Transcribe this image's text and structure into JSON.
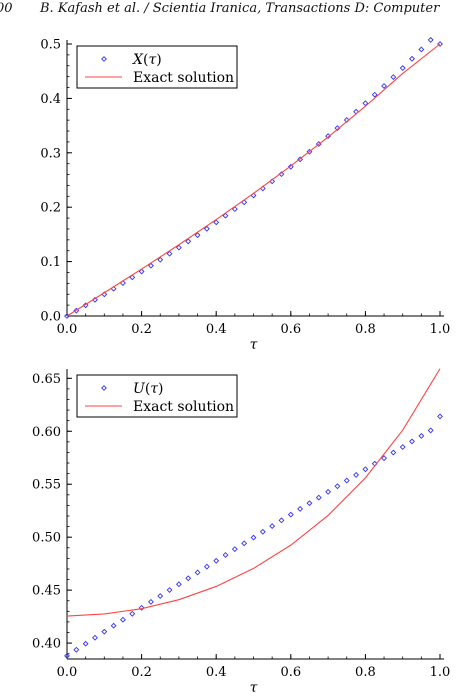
{
  "header": {
    "page_number": "00",
    "running_title": "B. Kafash et al. / Scientia Iranica, Transactions D: Computer"
  },
  "chart_data": [
    {
      "type": "scatter",
      "xlabel": "τ",
      "ylabel": "",
      "xlim": [
        0,
        1
      ],
      "ylim": [
        0,
        0.5
      ],
      "x_ticks": [
        "0.0",
        "0.2",
        "0.4",
        "0.6",
        "0.8",
        "1.0"
      ],
      "y_ticks": [
        "0.0",
        "0.1",
        "0.2",
        "0.3",
        "0.4",
        "0.5"
      ],
      "legend_position": "top-left",
      "grid": false,
      "series": [
        {
          "name": "X(τ)",
          "kind": "markers",
          "marker": "diamond",
          "color": "#3333ff",
          "x": [
            0,
            0.025,
            0.05,
            0.075,
            0.1,
            0.125,
            0.15,
            0.175,
            0.2,
            0.225,
            0.25,
            0.275,
            0.3,
            0.325,
            0.35,
            0.375,
            0.4,
            0.425,
            0.45,
            0.475,
            0.5,
            0.525,
            0.55,
            0.575,
            0.6,
            0.625,
            0.65,
            0.675,
            0.7,
            0.725,
            0.75,
            0.775,
            0.8,
            0.825,
            0.85,
            0.875,
            0.9,
            0.925,
            0.95,
            0.975,
            1.0
          ],
          "y": [
            0.0,
            0.0098,
            0.0197,
            0.0298,
            0.0399,
            0.0502,
            0.0606,
            0.0711,
            0.0817,
            0.0925,
            0.1034,
            0.1145,
            0.1257,
            0.1371,
            0.1486,
            0.1603,
            0.1722,
            0.1843,
            0.1965,
            0.209,
            0.2216,
            0.2345,
            0.2475,
            0.2608,
            0.2743,
            0.288,
            0.302,
            0.3162,
            0.3307,
            0.3454,
            0.3603,
            0.3756,
            0.3911,
            0.4068,
            0.4229,
            0.4392,
            0.4558,
            0.4728,
            0.49,
            0.5075,
            0.5
          ]
        },
        {
          "name": "Exact solution",
          "kind": "line",
          "color": "#ff4444",
          "x": [
            0,
            0.1,
            0.2,
            0.3,
            0.4,
            0.5,
            0.6,
            0.7,
            0.8,
            0.9,
            1.0
          ],
          "y": [
            0.0,
            0.0427,
            0.0863,
            0.131,
            0.1772,
            0.2253,
            0.2758,
            0.329,
            0.3856,
            0.4459,
            0.5
          ]
        }
      ]
    },
    {
      "type": "scatter",
      "xlabel": "τ",
      "ylabel": "",
      "xlim": [
        0,
        1
      ],
      "ylim": [
        0.385,
        0.655
      ],
      "x_ticks": [
        "0.0",
        "0.2",
        "0.4",
        "0.6",
        "0.8",
        "1.0"
      ],
      "y_ticks": [
        "0.40",
        "0.45",
        "0.50",
        "0.55",
        "0.60",
        "0.65"
      ],
      "legend_position": "top-left",
      "grid": false,
      "series": [
        {
          "name": "U(τ)",
          "kind": "markers",
          "marker": "diamond",
          "color": "#3333ff",
          "x": [
            0,
            0.025,
            0.05,
            0.075,
            0.1,
            0.125,
            0.15,
            0.175,
            0.2,
            0.225,
            0.25,
            0.275,
            0.3,
            0.325,
            0.35,
            0.375,
            0.4,
            0.425,
            0.45,
            0.475,
            0.5,
            0.525,
            0.55,
            0.575,
            0.6,
            0.625,
            0.65,
            0.675,
            0.7,
            0.725,
            0.75,
            0.775,
            0.8,
            0.825,
            0.85,
            0.875,
            0.9,
            0.925,
            0.95,
            0.975,
            1.0
          ],
          "y": [
            0.388,
            0.3937,
            0.3994,
            0.4051,
            0.4108,
            0.4164,
            0.4221,
            0.4277,
            0.4333,
            0.4389,
            0.4445,
            0.4501,
            0.4556,
            0.4612,
            0.4667,
            0.4722,
            0.4777,
            0.4832,
            0.4887,
            0.4942,
            0.4996,
            0.5051,
            0.5105,
            0.5159,
            0.5213,
            0.5267,
            0.5321,
            0.5374,
            0.5428,
            0.5481,
            0.5535,
            0.5588,
            0.5641,
            0.5694,
            0.5746,
            0.5799,
            0.5851,
            0.5904,
            0.5956,
            0.6008,
            0.614
          ]
        },
        {
          "name": "Exact solution",
          "kind": "line",
          "color": "#ff4444",
          "x": [
            0,
            0.1,
            0.2,
            0.3,
            0.4,
            0.5,
            0.6,
            0.7,
            0.8,
            0.9,
            1.0
          ],
          "y": [
            0.4255,
            0.4275,
            0.4325,
            0.441,
            0.4535,
            0.4705,
            0.4925,
            0.5205,
            0.556,
            0.601,
            0.659
          ]
        }
      ]
    }
  ]
}
